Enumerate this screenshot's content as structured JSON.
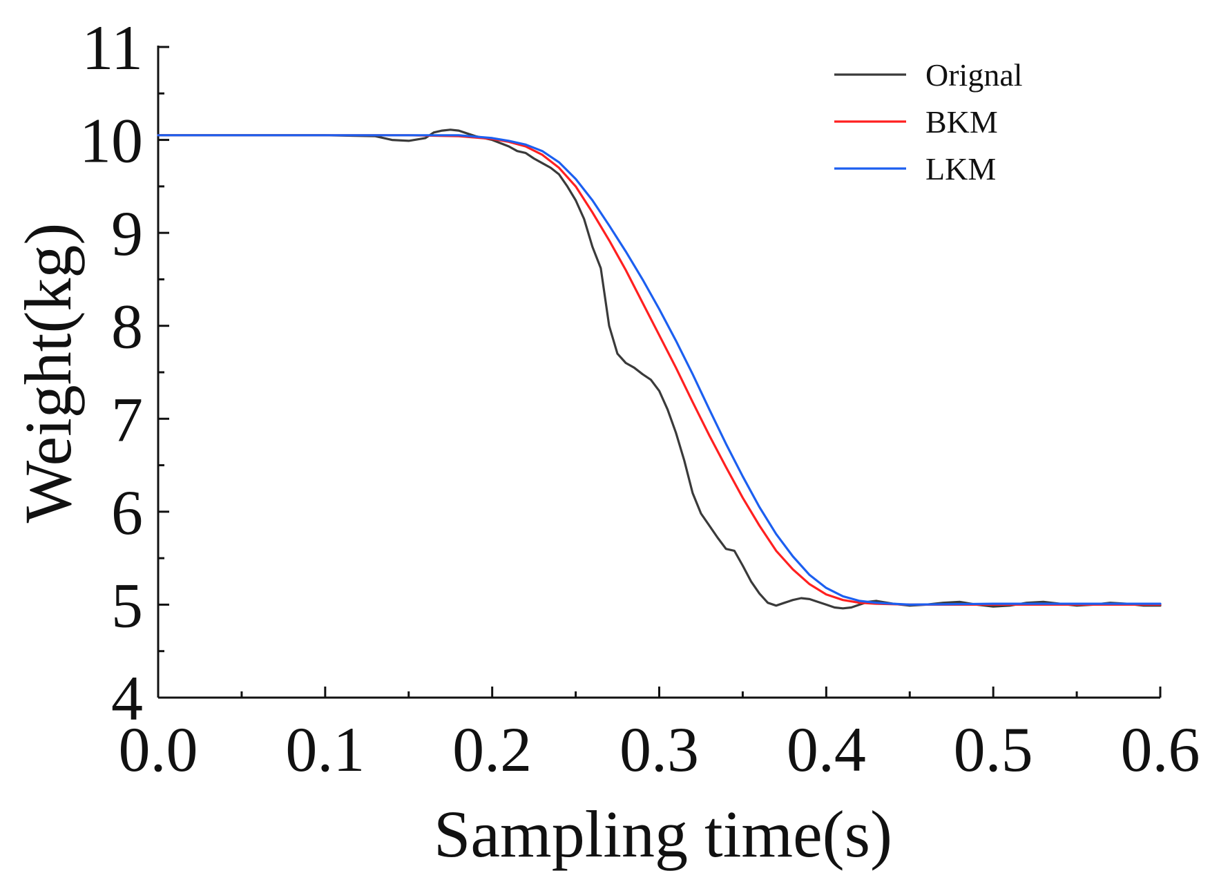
{
  "chart_data": {
    "type": "line",
    "title": "",
    "xlabel": "Sampling time(s)",
    "ylabel": "Weight(kg)",
    "xlim": [
      0.0,
      0.6
    ],
    "ylim": [
      4,
      11
    ],
    "x_ticks": [
      0.0,
      0.1,
      0.2,
      0.3,
      0.4,
      0.5,
      0.6
    ],
    "x_tick_labels": [
      "0.0",
      "0.1",
      "0.2",
      "0.3",
      "0.4",
      "0.5",
      "0.6"
    ],
    "y_ticks": [
      4,
      5,
      6,
      7,
      8,
      9,
      10,
      11
    ],
    "y_tick_labels": [
      "4",
      "5",
      "6",
      "7",
      "8",
      "9",
      "10",
      "11"
    ],
    "grid": false,
    "legend_position": "top-right",
    "series": [
      {
        "name": "Orignal",
        "color": "#3a3a3a",
        "x": [
          0.0,
          0.05,
          0.1,
          0.13,
          0.14,
          0.15,
          0.16,
          0.165,
          0.17,
          0.175,
          0.18,
          0.185,
          0.19,
          0.2,
          0.21,
          0.215,
          0.22,
          0.225,
          0.23,
          0.235,
          0.24,
          0.245,
          0.25,
          0.255,
          0.26,
          0.265,
          0.27,
          0.275,
          0.28,
          0.285,
          0.29,
          0.295,
          0.3,
          0.305,
          0.31,
          0.315,
          0.32,
          0.325,
          0.33,
          0.335,
          0.34,
          0.345,
          0.35,
          0.355,
          0.36,
          0.365,
          0.37,
          0.375,
          0.38,
          0.385,
          0.39,
          0.395,
          0.4,
          0.405,
          0.41,
          0.415,
          0.42,
          0.425,
          0.43,
          0.44,
          0.45,
          0.46,
          0.47,
          0.48,
          0.49,
          0.5,
          0.51,
          0.52,
          0.53,
          0.54,
          0.55,
          0.56,
          0.57,
          0.58,
          0.59,
          0.6
        ],
        "y": [
          10.05,
          10.05,
          10.05,
          10.04,
          10.0,
          9.99,
          10.02,
          10.08,
          10.1,
          10.11,
          10.1,
          10.07,
          10.04,
          10.0,
          9.93,
          9.88,
          9.86,
          9.8,
          9.75,
          9.7,
          9.63,
          9.5,
          9.35,
          9.15,
          8.85,
          8.62,
          8.0,
          7.7,
          7.6,
          7.55,
          7.48,
          7.42,
          7.3,
          7.1,
          6.85,
          6.55,
          6.2,
          5.98,
          5.85,
          5.72,
          5.6,
          5.58,
          5.42,
          5.25,
          5.12,
          5.02,
          4.99,
          5.02,
          5.05,
          5.07,
          5.06,
          5.03,
          5.0,
          4.97,
          4.96,
          4.97,
          5.0,
          5.03,
          5.04,
          5.01,
          4.99,
          5.0,
          5.02,
          5.03,
          5.0,
          4.98,
          4.99,
          5.02,
          5.03,
          5.01,
          4.99,
          5.0,
          5.02,
          5.01,
          4.99,
          4.99
        ]
      },
      {
        "name": "BKM",
        "color": "#ff2020",
        "x": [
          0.0,
          0.05,
          0.1,
          0.15,
          0.18,
          0.2,
          0.21,
          0.22,
          0.23,
          0.24,
          0.25,
          0.26,
          0.27,
          0.28,
          0.29,
          0.3,
          0.31,
          0.32,
          0.33,
          0.34,
          0.35,
          0.36,
          0.37,
          0.38,
          0.39,
          0.4,
          0.41,
          0.42,
          0.43,
          0.45,
          0.5,
          0.55,
          0.6
        ],
        "y": [
          10.05,
          10.05,
          10.05,
          10.05,
          10.04,
          10.01,
          9.98,
          9.93,
          9.84,
          9.7,
          9.5,
          9.22,
          8.92,
          8.6,
          8.25,
          7.9,
          7.55,
          7.18,
          6.82,
          6.48,
          6.15,
          5.85,
          5.58,
          5.38,
          5.22,
          5.11,
          5.05,
          5.02,
          5.01,
          5.0,
          5.0,
          5.0,
          5.0
        ]
      },
      {
        "name": "LKM",
        "color": "#1c5ff0",
        "x": [
          0.0,
          0.05,
          0.1,
          0.15,
          0.18,
          0.2,
          0.21,
          0.22,
          0.23,
          0.24,
          0.25,
          0.26,
          0.27,
          0.28,
          0.29,
          0.3,
          0.31,
          0.32,
          0.33,
          0.34,
          0.35,
          0.36,
          0.37,
          0.38,
          0.39,
          0.4,
          0.41,
          0.42,
          0.43,
          0.44,
          0.45,
          0.5,
          0.55,
          0.6
        ],
        "y": [
          10.05,
          10.05,
          10.05,
          10.05,
          10.05,
          10.02,
          9.99,
          9.95,
          9.88,
          9.76,
          9.58,
          9.35,
          9.08,
          8.8,
          8.5,
          8.18,
          7.84,
          7.48,
          7.1,
          6.73,
          6.38,
          6.05,
          5.76,
          5.52,
          5.32,
          5.18,
          5.09,
          5.04,
          5.02,
          5.01,
          5.0,
          5.01,
          5.01,
          5.01
        ]
      }
    ]
  }
}
